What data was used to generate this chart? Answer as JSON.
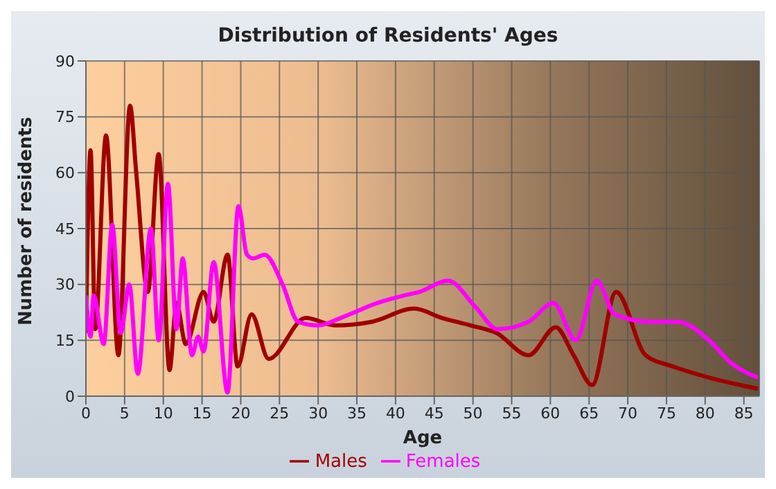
{
  "chart_data": {
    "type": "line",
    "title": "Distribution of Residents' Ages",
    "xlabel": "Age",
    "ylabel": "Number of residents",
    "xlim": [
      0,
      87
    ],
    "xticks": [
      0,
      5,
      10,
      15,
      20,
      25,
      30,
      35,
      40,
      45,
      50,
      55,
      60,
      65,
      70,
      75,
      80,
      85
    ],
    "ylim": [
      0,
      90
    ],
    "yticks": [
      0,
      15,
      30,
      45,
      60,
      75,
      90
    ],
    "grid": true,
    "legend": "bottom",
    "marker": "none",
    "line_style": "solid",
    "series": [
      {
        "name": "Males",
        "color": "#a00000",
        "x": [
          0,
          0.6,
          1.2,
          2.6,
          4.2,
          5.7,
          6.5,
          8,
          9.4,
          10.8,
          11.7,
          12.9,
          15.2,
          16.5,
          18.3,
          19.6,
          21.4,
          23.6,
          28.4,
          32.3,
          37,
          42.4,
          46,
          49.7,
          53,
          57.2,
          60.7,
          63,
          65.4,
          68.5,
          72.3,
          75.8,
          80.5,
          86.8
        ],
        "values": [
          17,
          66,
          18,
          70,
          11,
          78,
          60,
          28,
          65,
          7,
          25,
          14,
          28,
          20,
          38,
          8,
          22,
          10,
          21,
          19,
          20,
          23.5,
          21,
          19,
          17,
          11,
          18.5,
          11,
          3,
          28,
          11,
          8,
          5,
          2
        ]
      },
      {
        "name": "Females",
        "color": "#ff00ff",
        "x": [
          0,
          0.6,
          1,
          2.3,
          3.4,
          4.5,
          5.6,
          6.7,
          8.4,
          9.4,
          10.6,
          11.7,
          12.5,
          13.7,
          14.5,
          15.2,
          16.5,
          18.3,
          19.7,
          20.8,
          21.6,
          23.1,
          25.4,
          27.4,
          30,
          32.9,
          37.6,
          41,
          43.1,
          46.8,
          50.3,
          53.2,
          57.2,
          60.4,
          63.3,
          66,
          68.3,
          72.9,
          76.4,
          80.5,
          83.3,
          86.8
        ],
        "values": [
          27,
          16,
          27,
          14,
          46,
          17,
          30,
          6,
          45,
          15,
          57,
          18,
          37,
          11,
          16,
          12,
          36,
          1,
          51,
          38,
          37,
          38,
          30,
          20,
          19,
          21,
          25,
          27,
          28,
          31,
          24,
          18,
          20,
          25,
          15,
          31,
          22,
          20,
          20,
          15,
          9,
          5
        ]
      }
    ]
  }
}
